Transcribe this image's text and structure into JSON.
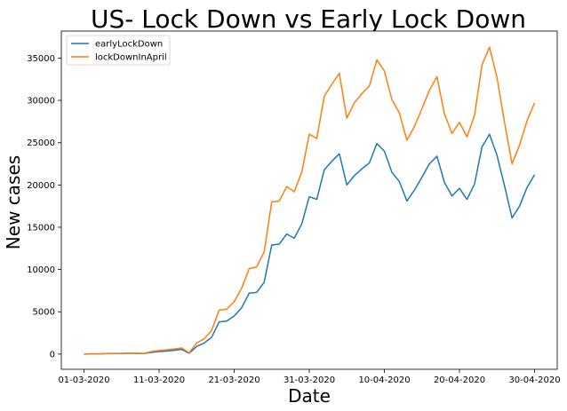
{
  "chart_data": {
    "type": "line",
    "title": "US- Lock Down vs Early Lock Down",
    "xlabel": "Date",
    "ylabel": "New cases",
    "x": [
      "01-03-2020",
      "02-03-2020",
      "03-03-2020",
      "04-03-2020",
      "05-03-2020",
      "06-03-2020",
      "07-03-2020",
      "08-03-2020",
      "09-03-2020",
      "10-03-2020",
      "11-03-2020",
      "12-03-2020",
      "13-03-2020",
      "14-03-2020",
      "15-03-2020",
      "16-03-2020",
      "17-03-2020",
      "18-03-2020",
      "19-03-2020",
      "20-03-2020",
      "21-03-2020",
      "22-03-2020",
      "23-03-2020",
      "24-03-2020",
      "25-03-2020",
      "26-03-2020",
      "27-03-2020",
      "28-03-2020",
      "29-03-2020",
      "30-03-2020",
      "31-03-2020",
      "01-04-2020",
      "02-04-2020",
      "03-04-2020",
      "04-04-2020",
      "05-04-2020",
      "06-04-2020",
      "07-04-2020",
      "08-04-2020",
      "09-04-2020",
      "10-04-2020",
      "11-04-2020",
      "12-04-2020",
      "13-04-2020",
      "14-04-2020",
      "15-04-2020",
      "16-04-2020",
      "17-04-2020",
      "18-04-2020",
      "19-04-2020",
      "20-04-2020",
      "21-04-2020",
      "22-04-2020",
      "23-04-2020",
      "24-04-2020",
      "25-04-2020",
      "26-04-2020",
      "27-04-2020",
      "28-04-2020",
      "29-04-2020",
      "30-04-2020"
    ],
    "x_tick_labels": [
      "01-03-2020",
      "11-03-2020",
      "21-03-2020",
      "31-03-2020",
      "10-04-2020",
      "20-04-2020",
      "30-04-2020"
    ],
    "y_ticks": [
      0,
      5000,
      10000,
      15000,
      20000,
      25000,
      30000,
      35000
    ],
    "ylim": [
      -1800,
      38200
    ],
    "legend_position": "top-left",
    "series": [
      {
        "name": "earlyLockDown",
        "color": "#1f77b4",
        "values": [
          0,
          20,
          20,
          50,
          60,
          70,
          100,
          80,
          60,
          200,
          300,
          350,
          450,
          550,
          100,
          900,
          1300,
          2000,
          3800,
          3900,
          4500,
          5500,
          7200,
          7300,
          8500,
          12900,
          13000,
          14200,
          13700,
          15400,
          18600,
          18300,
          21800,
          22800,
          23700,
          20000,
          21100,
          21900,
          22600,
          24900,
          24000,
          21500,
          20400,
          18100,
          19400,
          20900,
          22500,
          23400,
          20300,
          18700,
          19600,
          18300,
          20100,
          24500,
          26000,
          23500,
          19900,
          16100,
          17500,
          19700,
          21200
        ]
      },
      {
        "name": "lockDownInApril",
        "color": "#ff7f0e",
        "values": [
          0,
          30,
          30,
          60,
          80,
          90,
          120,
          100,
          80,
          300,
          420,
          500,
          600,
          720,
          150,
          1300,
          1800,
          2800,
          5200,
          5300,
          6200,
          7800,
          10100,
          10300,
          12100,
          18000,
          18100,
          19800,
          19200,
          21500,
          26000,
          25500,
          30500,
          31900,
          33200,
          27900,
          29700,
          30800,
          31700,
          34800,
          33500,
          30100,
          28500,
          25300,
          26900,
          29000,
          31200,
          32800,
          28400,
          26100,
          27400,
          25700,
          28200,
          34200,
          36300,
          32700,
          27400,
          22500,
          24700,
          27600,
          29700
        ]
      }
    ]
  }
}
